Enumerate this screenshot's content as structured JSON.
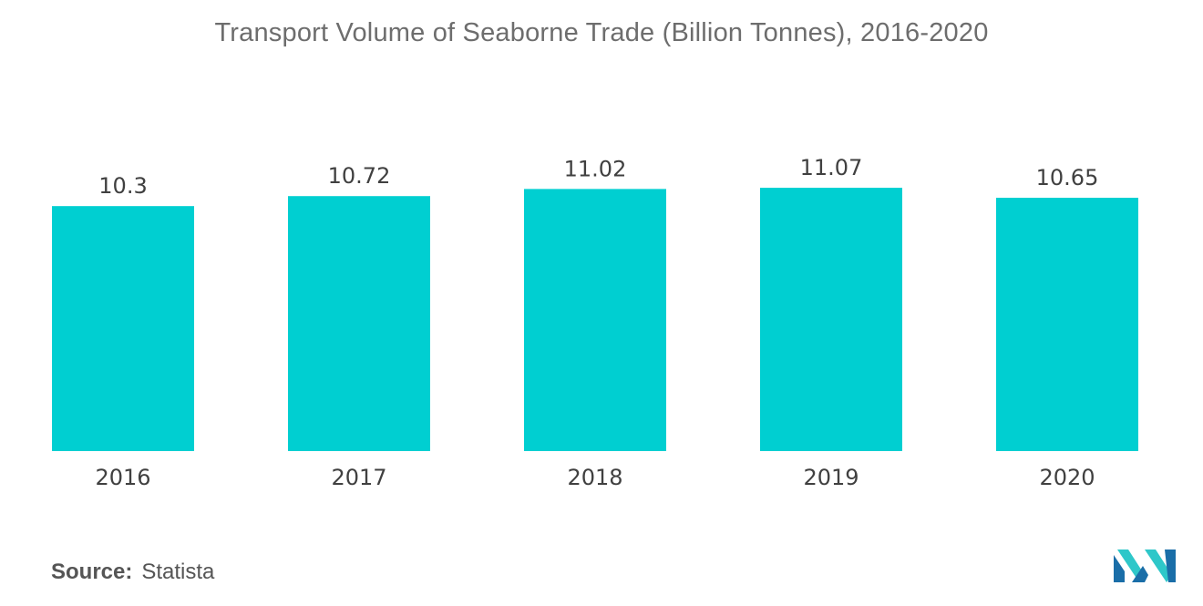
{
  "chart_data": {
    "type": "bar",
    "title": "Transport Volume of Seaborne Trade (Billion Tonnes), 2016-2020",
    "categories": [
      "2016",
      "2017",
      "2018",
      "2019",
      "2020"
    ],
    "values": [
      10.3,
      10.72,
      11.02,
      11.07,
      10.65
    ],
    "value_labels": [
      "10.3",
      "10.72",
      "11.02",
      "11.07",
      "10.65"
    ],
    "xlabel": "",
    "ylabel": "",
    "grid": false,
    "legend": "none",
    "bar_color": "#00cfd1"
  },
  "source": {
    "label": "Source:",
    "value": "Statista"
  },
  "logo": {
    "icon": "mordor-intelligence-logo",
    "colors": [
      "#1a6ea8",
      "#2ec7c9"
    ]
  }
}
